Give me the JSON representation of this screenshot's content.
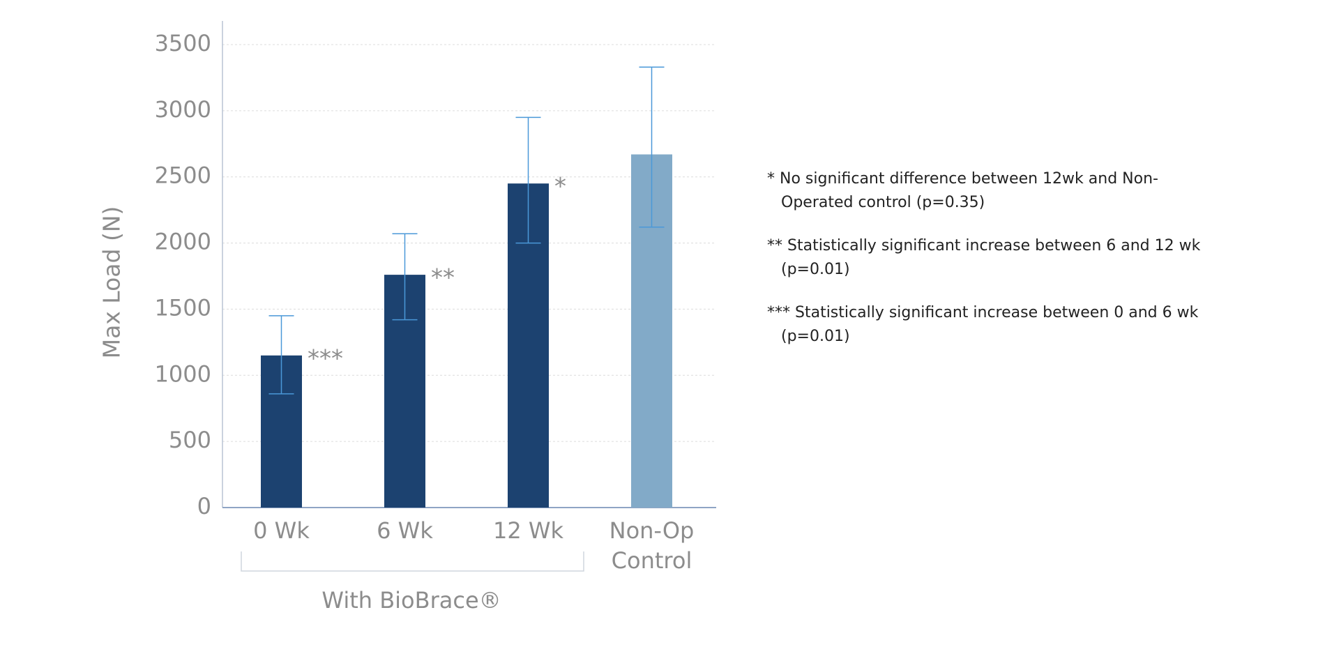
{
  "chart_data": {
    "type": "bar",
    "y_label": "Max Load (N)",
    "categories": [
      "0 Wk",
      "6 Wk",
      "12 Wk",
      "Non-Op Control"
    ],
    "values": [
      1150,
      1760,
      2450,
      2670
    ],
    "error_bars": [
      [
        860,
        1450
      ],
      [
        1420,
        2070
      ],
      [
        2000,
        2950
      ],
      [
        2120,
        3330
      ]
    ],
    "colors": [
      "#1c4270",
      "#1c4270",
      "#1c4270",
      "#82aac8"
    ],
    "error_color": "#4a98d8",
    "annotations": [
      "***",
      "**",
      "*",
      null
    ],
    "group_label": "With BioBrace®",
    "ylim": [
      0,
      3500
    ],
    "yticks": [
      0,
      500,
      1000,
      1500,
      2000,
      2500,
      3000,
      3500
    ],
    "grid": true,
    "notes": [
      "* No significant difference between 12wk and Non-Operated control (p=0.35)",
      "** Statistically significant increase between 6 and 12 wk (p=0.01)",
      "*** Statistically significant increase between 0 and 6 wk (p=0.01)"
    ]
  }
}
